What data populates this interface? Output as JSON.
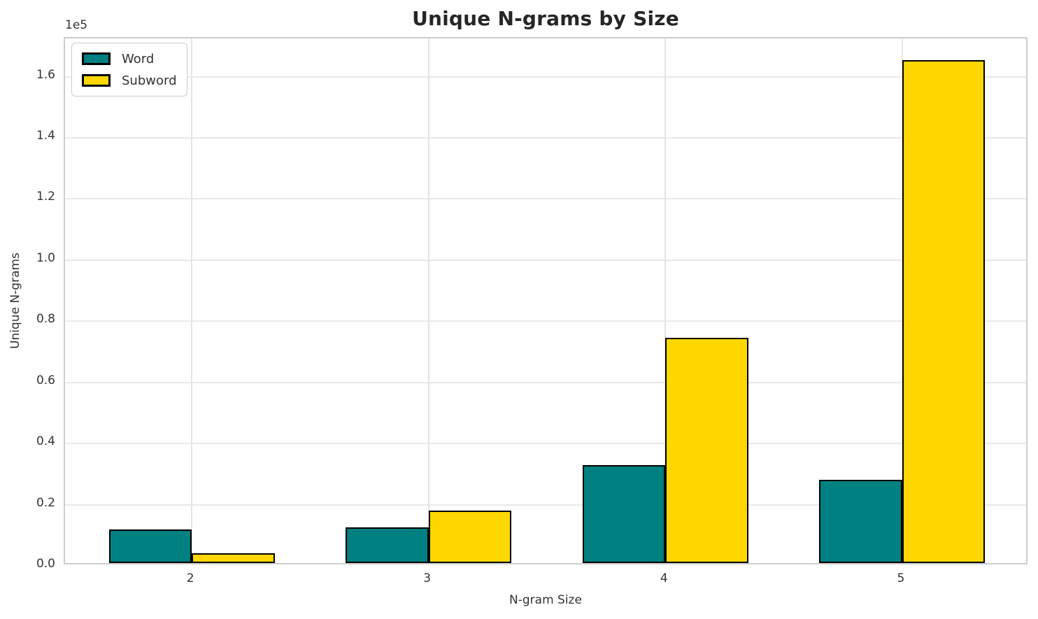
{
  "chart_data": {
    "type": "bar",
    "title": "Unique N-grams by Size",
    "xlabel": "N-gram Size",
    "ylabel": "Unique N-grams",
    "y_axis_offset_text": "1e5",
    "categories": [
      "2",
      "3",
      "4",
      "5"
    ],
    "series": [
      {
        "name": "Word",
        "color": "#008080",
        "values": [
          11000,
          11700,
          32000,
          27200
        ]
      },
      {
        "name": "Subword",
        "color": "#FFD700",
        "values": [
          3200,
          17100,
          73700,
          164600
        ]
      }
    ],
    "bar_edge_color": "#000000",
    "ylim": [
      0,
      172500
    ],
    "xlim": [
      -0.535,
      3.535
    ],
    "bar_width_frac": 0.35,
    "yticks": [
      {
        "value": 0,
        "label": "0.0"
      },
      {
        "value": 20000,
        "label": "0.2"
      },
      {
        "value": 40000,
        "label": "0.4"
      },
      {
        "value": 60000,
        "label": "0.6"
      },
      {
        "value": 80000,
        "label": "0.8"
      },
      {
        "value": 100000,
        "label": "1.0"
      },
      {
        "value": 120000,
        "label": "1.2"
      },
      {
        "value": 140000,
        "label": "1.4"
      },
      {
        "value": 160000,
        "label": "1.6"
      }
    ],
    "grid": true,
    "legend_position": "upper left"
  }
}
